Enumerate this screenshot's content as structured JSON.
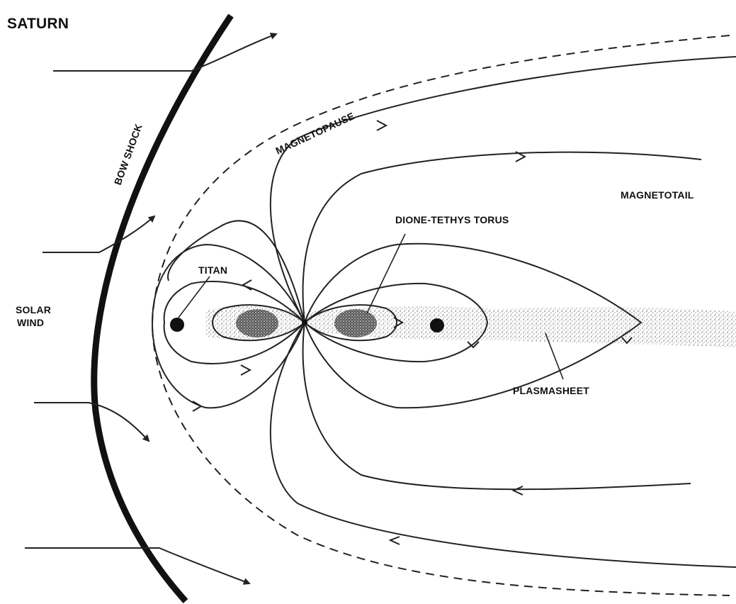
{
  "title": "SATURN",
  "labels": {
    "bow_shock": "BOW SHOCK",
    "magnetopause": "MAGNETOPAUSE",
    "magnetotail": "MAGNETOTAIL",
    "dione_tethys_torus": "DIONE-TETHYS TORUS",
    "titan": "TITAN",
    "solar_wind_line1": "SOLAR",
    "solar_wind_line2": "WIND",
    "plasmasheet": "PLASMASHEET"
  },
  "colors": {
    "ink": "#222222",
    "background": "#ffffff",
    "stipple": "#9a9a9a"
  }
}
